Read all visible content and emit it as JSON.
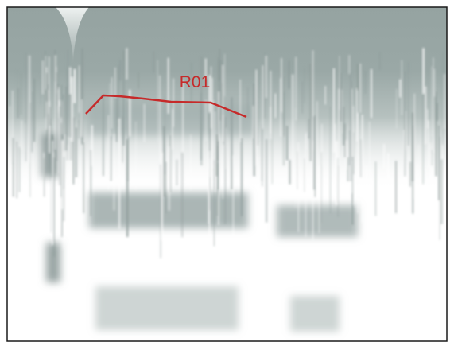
{
  "label": "R01"
}
